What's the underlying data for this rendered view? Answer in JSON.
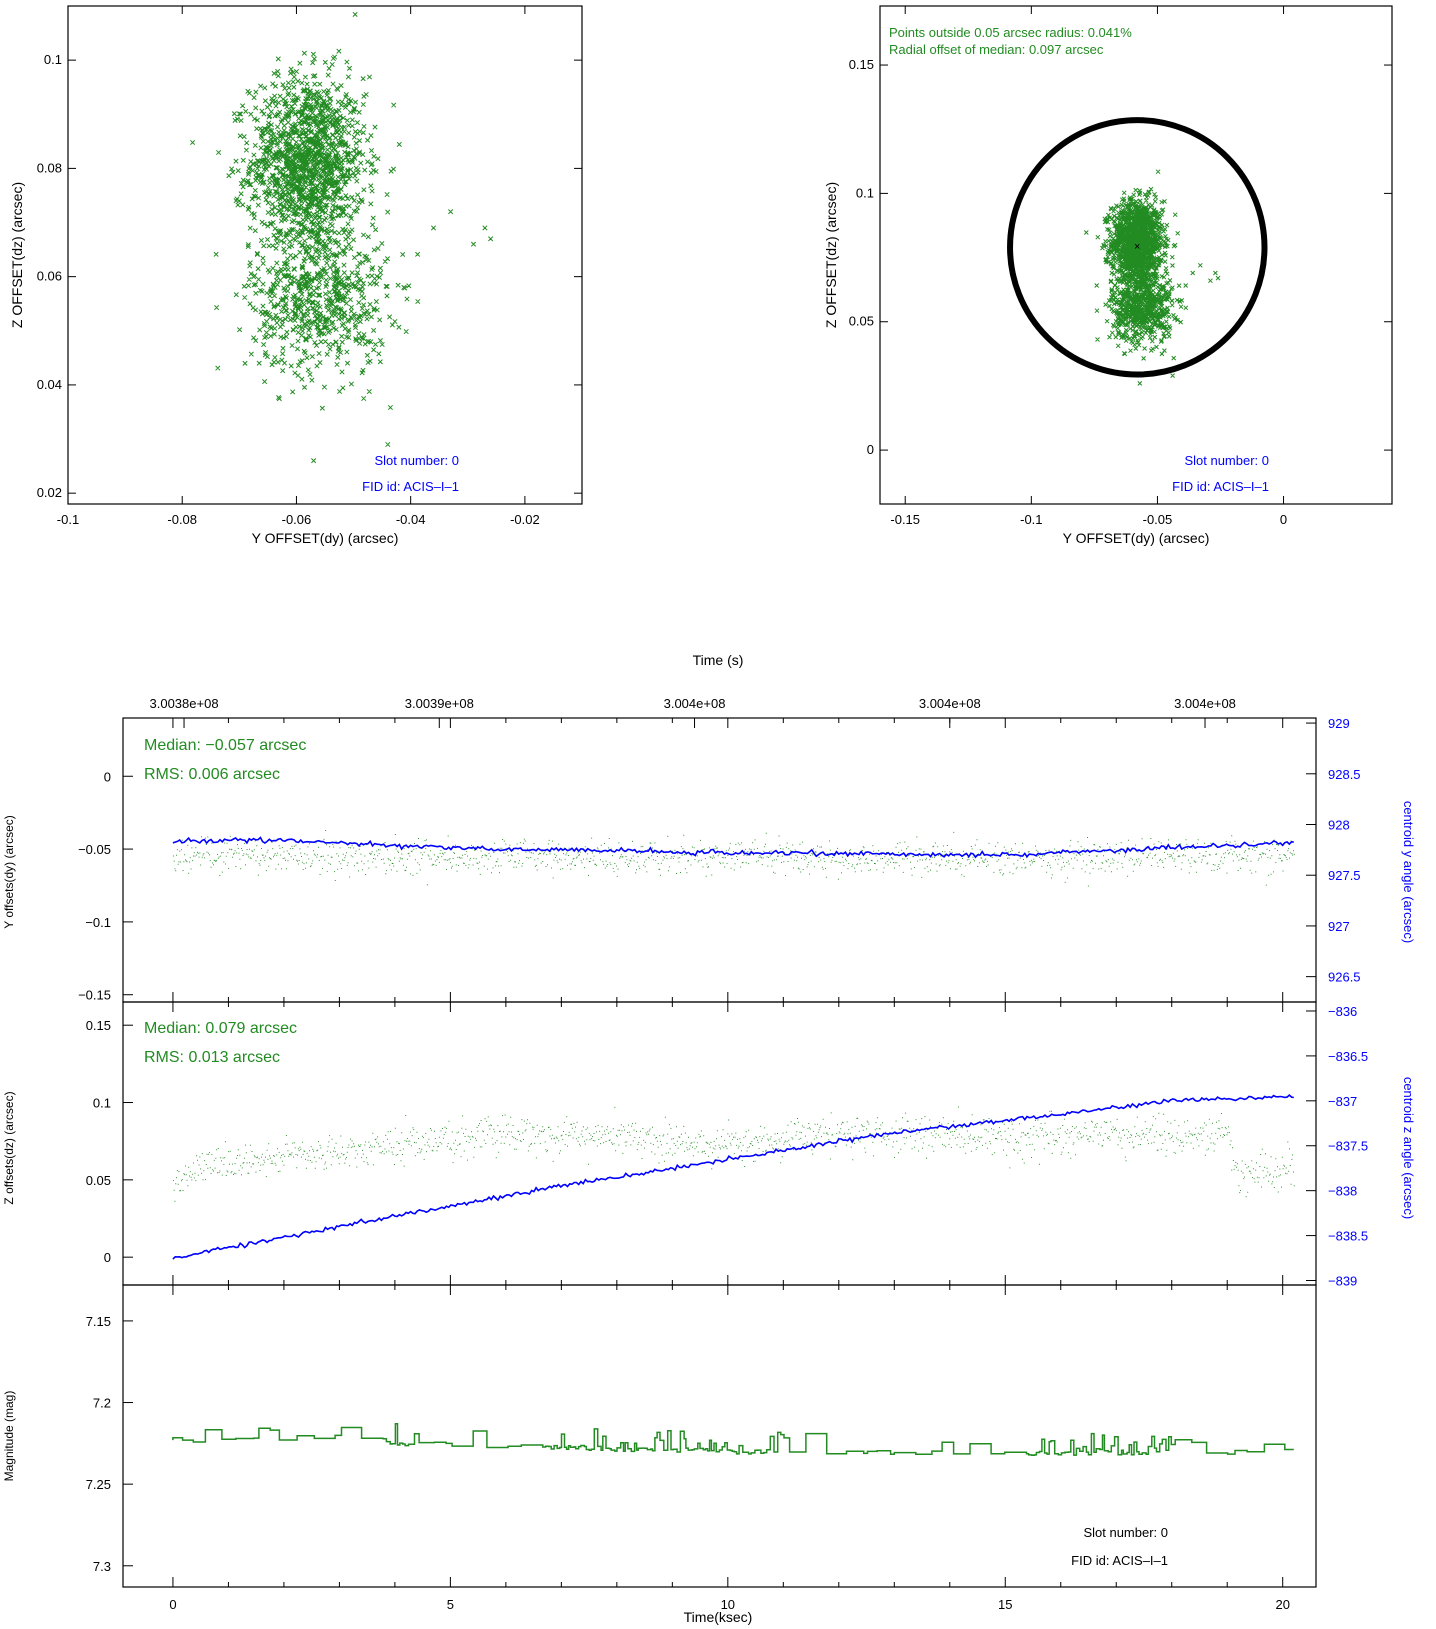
{
  "colors": {
    "data": "#228b22",
    "centroid": "#0000ff",
    "axes": "#000000"
  },
  "chart_data": [
    {
      "id": "scatter-left",
      "type": "scatter",
      "xlabel": "Y OFFSET(dy) (arcsec)",
      "ylabel": "Z OFFSET(dz) (arcsec)",
      "xlim": [
        -0.1,
        -0.01
      ],
      "ylim": [
        0.018,
        0.11
      ],
      "xticks": [
        "-0.1",
        "-0.08",
        "-0.06",
        "-0.04",
        "-0.02"
      ],
      "xtick_values": [
        -0.1,
        -0.08,
        -0.06,
        -0.04,
        -0.02
      ],
      "yticks": [
        "0.02",
        "0.04",
        "0.06",
        "0.08",
        "0.1"
      ],
      "ytick_values": [
        0.02,
        0.04,
        0.06,
        0.08,
        0.1
      ],
      "clusters": [
        {
          "cx": -0.058,
          "cy": 0.081,
          "sx": 0.005,
          "sy": 0.008,
          "n": 1400
        },
        {
          "cx": -0.056,
          "cy": 0.056,
          "sx": 0.006,
          "sy": 0.007,
          "n": 650
        }
      ],
      "outliers": [
        [
          -0.07,
          0.074
        ],
        [
          -0.068,
          0.077
        ],
        [
          -0.036,
          0.069
        ],
        [
          -0.033,
          0.072
        ],
        [
          -0.027,
          0.069
        ],
        [
          -0.026,
          0.067
        ],
        [
          -0.029,
          0.066
        ],
        [
          -0.069,
          0.044
        ],
        [
          -0.044,
          0.029
        ],
        [
          -0.057,
          0.026
        ]
      ],
      "annotations": [
        "Slot number: 0",
        "FID id: ACIS–I–1"
      ]
    },
    {
      "id": "scatter-right",
      "type": "scatter",
      "xlabel": "Y OFFSET(dy) (arcsec)",
      "ylabel": "Z OFFSET(dz) (arcsec)",
      "xlim": [
        -0.16,
        0.043
      ],
      "ylim": [
        -0.021,
        0.173
      ],
      "xticks": [
        "-0.15",
        "-0.1",
        "-0.05",
        "0"
      ],
      "xtick_values": [
        -0.15,
        -0.1,
        -0.05,
        0
      ],
      "yticks": [
        "0",
        "0.05",
        "0.1",
        "0.15"
      ],
      "ytick_values": [
        0,
        0.05,
        0.1,
        0.15
      ],
      "median": [
        -0.058,
        0.079
      ],
      "circle_radius": 0.05,
      "clusters": [
        {
          "cx": -0.058,
          "cy": 0.081,
          "sx": 0.005,
          "sy": 0.008,
          "n": 1400
        },
        {
          "cx": -0.056,
          "cy": 0.056,
          "sx": 0.006,
          "sy": 0.007,
          "n": 650
        }
      ],
      "outliers": [
        [
          -0.07,
          0.074
        ],
        [
          -0.068,
          0.077
        ],
        [
          -0.036,
          0.069
        ],
        [
          -0.033,
          0.072
        ],
        [
          -0.027,
          0.069
        ],
        [
          -0.026,
          0.067
        ],
        [
          -0.029,
          0.066
        ],
        [
          -0.069,
          0.044
        ],
        [
          -0.044,
          0.029
        ],
        [
          -0.057,
          0.026
        ]
      ],
      "annotations": [
        "Points outside 0.05 arcsec radius: 0.041%",
        "Radial offset of median: 0.097 arcsec",
        "Slot number: 0",
        "FID id: ACIS–I–1"
      ]
    },
    {
      "id": "y-offsets",
      "type": "line",
      "ylabel": "Y offsets(dy) (arcsec)",
      "ylabel_right": "centroid y angle (arcsec)",
      "xlim": [
        -0.9,
        20.6
      ],
      "ylim": [
        -0.155,
        0.04
      ],
      "yticks": [
        "0",
        "−0.05",
        "−0.1",
        "−0.15"
      ],
      "ytick_values": [
        0,
        -0.05,
        -0.1,
        -0.15
      ],
      "right_ylim": [
        926.25,
        929.05
      ],
      "right_yticks": [
        "929",
        "928.5",
        "928",
        "927.5",
        "927",
        "926.5"
      ],
      "right_ytick_values": [
        929,
        928.5,
        928,
        927.5,
        927,
        926.5
      ],
      "stats": [
        "Median: −0.057 arcsec",
        "RMS: 0.006 arcsec"
      ],
      "top_axis_title": "Time (s)",
      "top_ticks": [
        "3.0038e+08",
        "3.0039e+08",
        "3.004e+08",
        "3.004e+08",
        "3.004e+08"
      ],
      "top_tick_ksec": [
        0.2,
        4.8,
        9.4,
        14.0,
        18.6
      ],
      "offset_trend": [
        [
          0,
          -0.055
        ],
        [
          5,
          -0.055
        ],
        [
          9.5,
          -0.056
        ],
        [
          10.3,
          -0.052
        ],
        [
          11,
          -0.056
        ],
        [
          15,
          -0.057
        ],
        [
          20.2,
          -0.054
        ]
      ],
      "offset_noise": 0.006,
      "centroid_trend": [
        [
          0,
          927.83
        ],
        [
          1.5,
          927.85
        ],
        [
          5,
          927.77
        ],
        [
          10,
          927.72
        ],
        [
          15,
          927.7
        ],
        [
          20.2,
          927.82
        ]
      ]
    },
    {
      "id": "z-offsets",
      "type": "line",
      "ylabel": "Z offsets(dz) (arcsec)",
      "ylabel_right": "centroid z angle (arcsec)",
      "xlim": [
        -0.9,
        20.6
      ],
      "ylim": [
        -0.018,
        0.165
      ],
      "yticks": [
        "0.15",
        "0.1",
        "0.05",
        "0"
      ],
      "ytick_values": [
        0.15,
        0.1,
        0.05,
        0
      ],
      "right_ylim": [
        -839.05,
        -835.9
      ],
      "right_yticks": [
        "−836",
        "−836.5",
        "−837",
        "−837.5",
        "−838",
        "−838.5",
        "−839"
      ],
      "right_ytick_values": [
        -836,
        -836.5,
        -837,
        -837.5,
        -838,
        -838.5,
        -839
      ],
      "stats": [
        "Median: 0.079 arcsec",
        "RMS: 0.013 arcsec"
      ],
      "offset_trend": [
        [
          0,
          0.045
        ],
        [
          0.6,
          0.06
        ],
        [
          2,
          0.065
        ],
        [
          4,
          0.072
        ],
        [
          6,
          0.08
        ],
        [
          8,
          0.078
        ],
        [
          10,
          0.072
        ],
        [
          12,
          0.08
        ],
        [
          15,
          0.078
        ],
        [
          17,
          0.08
        ],
        [
          19,
          0.078
        ],
        [
          19.2,
          0.055
        ],
        [
          20.2,
          0.055
        ]
      ],
      "offset_noise": 0.006,
      "centroid_trend": [
        [
          0,
          -838.75
        ],
        [
          3,
          -838.4
        ],
        [
          6.5,
          -838.0
        ],
        [
          10,
          -837.65
        ],
        [
          13,
          -837.35
        ],
        [
          16,
          -837.15
        ],
        [
          18,
          -837.0
        ],
        [
          20.2,
          -836.95
        ]
      ]
    },
    {
      "id": "magnitude",
      "type": "line",
      "xlabel": "Time(ksec)",
      "ylabel": "Magnitude (mag)",
      "xlim": [
        -0.9,
        20.6
      ],
      "ylim": [
        7.313,
        7.128
      ],
      "xticks": [
        "0",
        "5",
        "10",
        "15",
        "20"
      ],
      "xtick_values": [
        0,
        5,
        10,
        15,
        20
      ],
      "yticks": [
        "7.15",
        "7.2",
        "7.25",
        "7.3"
      ],
      "ytick_values": [
        7.15,
        7.2,
        7.25,
        7.3
      ],
      "mag_trend": [
        [
          0,
          7.223
        ],
        [
          3.5,
          7.221
        ],
        [
          4,
          7.225
        ],
        [
          10,
          7.23
        ],
        [
          15,
          7.231
        ],
        [
          20.2,
          7.23
        ]
      ],
      "annotations": [
        "Slot number: 0",
        "FID id: ACIS–I–1"
      ]
    }
  ]
}
